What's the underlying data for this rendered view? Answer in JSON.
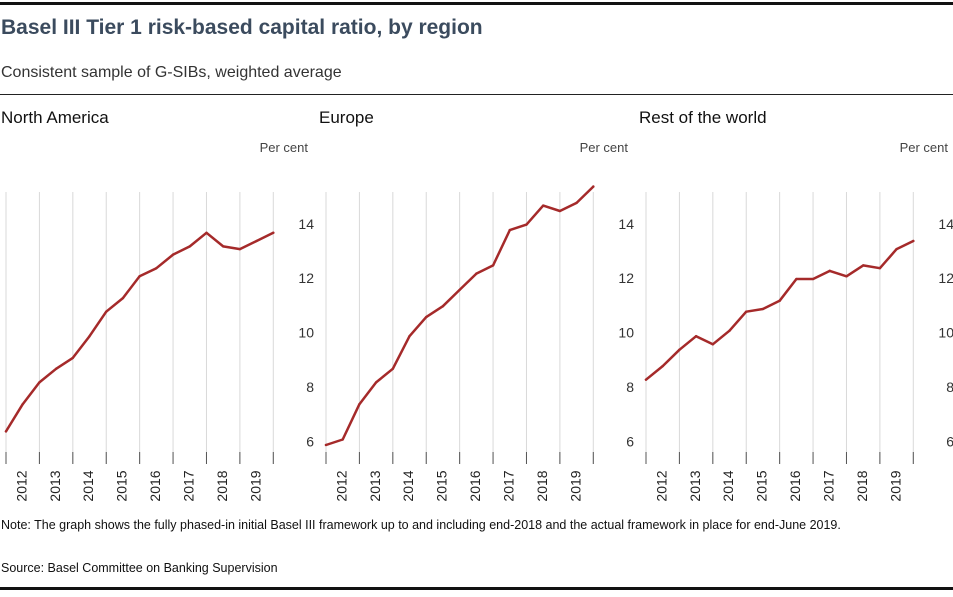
{
  "header": {
    "title": "Basel III Tier 1 risk-based capital ratio, by region",
    "subtitle": "Consistent sample of G-SIBs, weighted average"
  },
  "colors": {
    "line": "#a52a2a",
    "grid": "#d9d9d9",
    "axis": "#555555"
  },
  "chart_data": [
    {
      "type": "line",
      "title": "North America",
      "ylabel": "Per cent",
      "ylim": [
        5.5,
        15.5
      ],
      "yticks": [
        6,
        8,
        10,
        12,
        14
      ],
      "xlim": [
        2011.0,
        2019.5
      ],
      "xticks": [
        "2012",
        "2013",
        "2014",
        "2015",
        "2016",
        "2017",
        "2018",
        "2019"
      ],
      "grid": true,
      "x": [
        2011.0,
        2011.5,
        2012.0,
        2012.5,
        2013.0,
        2013.5,
        2014.0,
        2014.5,
        2015.0,
        2015.5,
        2016.0,
        2016.5,
        2017.0,
        2017.5,
        2018.0,
        2018.5,
        2019.0
      ],
      "values": [
        6.7,
        7.7,
        8.5,
        9.0,
        9.4,
        10.2,
        11.1,
        11.6,
        12.4,
        12.7,
        13.2,
        13.5,
        14.0,
        13.5,
        13.4,
        13.7,
        14.0
      ]
    },
    {
      "type": "line",
      "title": "Europe",
      "ylabel": "Per cent",
      "ylim": [
        5.5,
        15.5
      ],
      "yticks": [
        6,
        8,
        10,
        12,
        14
      ],
      "xlim": [
        2011.0,
        2019.5
      ],
      "xticks": [
        "2012",
        "2013",
        "2014",
        "2015",
        "2016",
        "2017",
        "2018",
        "2019"
      ],
      "grid": true,
      "x": [
        2011.0,
        2011.5,
        2012.0,
        2012.5,
        2013.0,
        2013.5,
        2014.0,
        2014.5,
        2015.0,
        2015.5,
        2016.0,
        2016.5,
        2017.0,
        2017.5,
        2018.0,
        2018.5,
        2019.0
      ],
      "values": [
        6.2,
        6.4,
        7.7,
        8.5,
        9.0,
        10.2,
        10.9,
        11.3,
        11.9,
        12.5,
        12.8,
        14.1,
        14.3,
        15.0,
        14.8,
        15.1,
        15.7
      ]
    },
    {
      "type": "line",
      "title": "Rest of the world",
      "ylabel": "Per cent",
      "ylim": [
        5.5,
        15.5
      ],
      "yticks": [
        6,
        8,
        10,
        12,
        14
      ],
      "xlim": [
        2011.0,
        2019.5
      ],
      "xticks": [
        "2012",
        "2013",
        "2014",
        "2015",
        "2016",
        "2017",
        "2018",
        "2019"
      ],
      "grid": true,
      "x": [
        2011.0,
        2011.5,
        2012.0,
        2012.5,
        2013.0,
        2013.5,
        2014.0,
        2014.5,
        2015.0,
        2015.5,
        2016.0,
        2016.5,
        2017.0,
        2017.5,
        2018.0,
        2018.5,
        2019.0
      ],
      "values": [
        8.6,
        9.1,
        9.7,
        10.2,
        9.9,
        10.4,
        11.1,
        11.2,
        11.5,
        12.3,
        12.3,
        12.6,
        12.4,
        12.8,
        12.7,
        13.4,
        13.7
      ]
    }
  ],
  "footer": {
    "note": "Note: The graph shows the fully phased-in initial Basel III framework up to and including end-2018 and the actual framework in place for end-June 2019.",
    "source": "Source: Basel Committee on Banking Supervision"
  }
}
